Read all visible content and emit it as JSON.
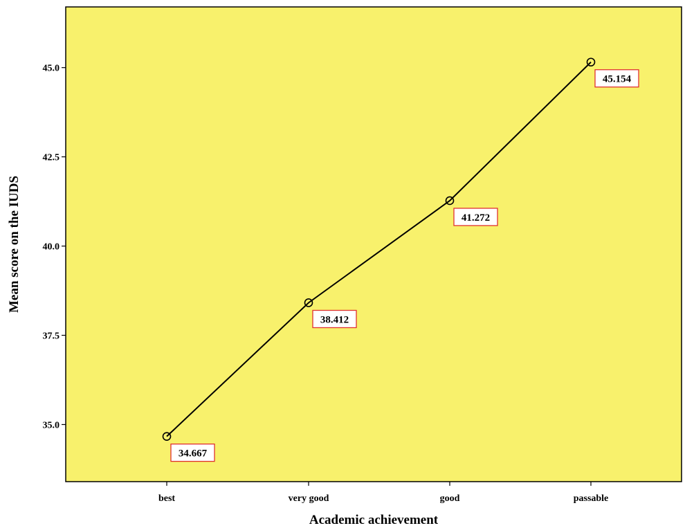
{
  "chart_data": {
    "type": "line",
    "title": "",
    "xlabel": "Academic achievement",
    "ylabel": "Mean score on the IUDS",
    "categories": [
      "best",
      "very good",
      "good",
      "passable"
    ],
    "series": [
      {
        "values": [
          34.667,
          38.412,
          41.272,
          45.154
        ],
        "data_labels": [
          "34.667",
          "38.412",
          "41.272",
          "45.154"
        ],
        "marker": "open-circle",
        "line_color": "#000000"
      }
    ],
    "ylim": [
      33.4,
      46.7
    ],
    "yticks": [
      35.0,
      37.5,
      40.0,
      42.5,
      45.0
    ],
    "ytick_labels": [
      "35.0",
      "37.5",
      "40.0",
      "42.5",
      "45.0"
    ],
    "grid": false,
    "legend": "none",
    "colors": {
      "plot_background": "#F8F16C",
      "axis": "#000000",
      "label_border": "#E03030",
      "label_background": "#FFFFFF"
    }
  }
}
